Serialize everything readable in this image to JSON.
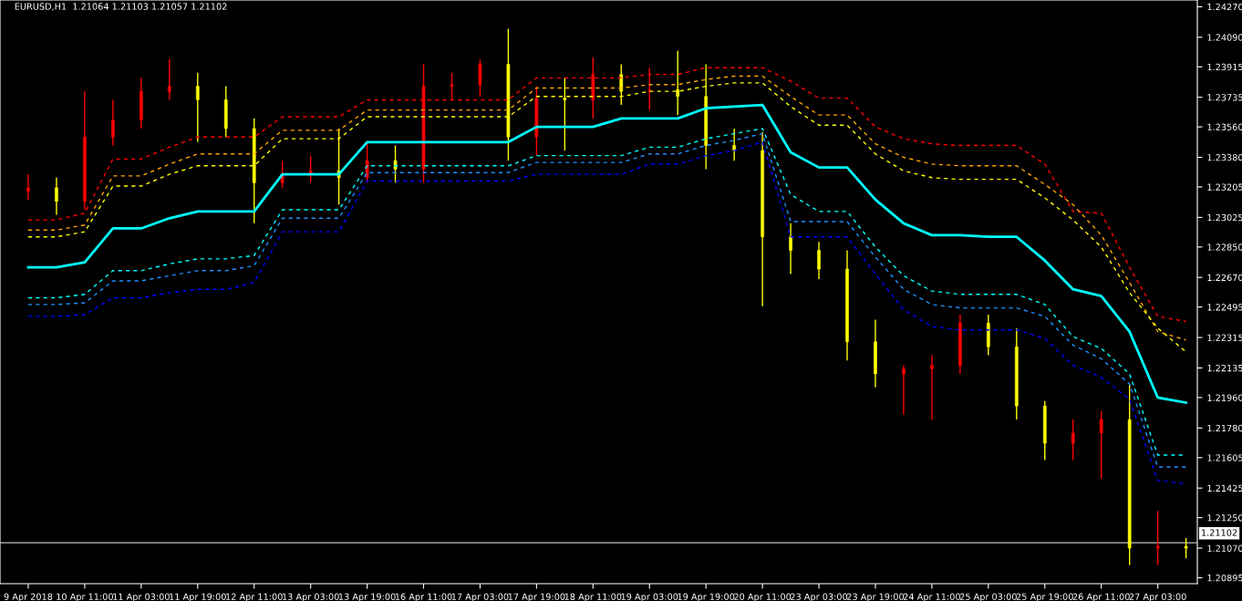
{
  "chart_data": {
    "type": "candlestick",
    "title": "EURUSD,H1  1.21064 1.21103 1.21057 1.21102",
    "categories": [
      "9 Apr 2018",
      null,
      "10 Apr 11:00",
      null,
      "11 Apr 03:00",
      null,
      "11 Apr 19:00",
      null,
      "12 Apr 11:00",
      null,
      "13 Apr 03:00",
      null,
      "13 Apr 19:00",
      null,
      "16 Apr 11:00",
      null,
      "17 Apr 03:00",
      null,
      "17 Apr 19:00",
      null,
      "18 Apr 11:00",
      null,
      "19 Apr 03:00",
      null,
      "19 Apr 19:00",
      null,
      "20 Apr 11:00",
      null,
      "23 Apr 03:00",
      null,
      "23 Apr 19:00",
      null,
      "24 Apr 11:00",
      null,
      "25 Apr 03:00",
      null,
      "25 Apr 19:00",
      null,
      "26 Apr 11:00",
      null,
      "27 Apr 03:00",
      null
    ],
    "ohlc": [
      [
        1.2318,
        1.2328,
        1.2313,
        1.232
      ],
      [
        1.232,
        1.2326,
        1.2304,
        1.2312
      ],
      [
        1.2312,
        1.2377,
        1.2307,
        1.235
      ],
      [
        1.235,
        1.2372,
        1.2345,
        1.236
      ],
      [
        1.236,
        1.2385,
        1.2355,
        1.2377
      ],
      [
        1.2377,
        1.2396,
        1.2372,
        1.238
      ],
      [
        1.238,
        1.2388,
        1.2347,
        1.2372
      ],
      [
        1.2372,
        1.238,
        1.235,
        1.2355
      ],
      [
        1.2355,
        1.2361,
        1.2299,
        1.2323
      ],
      [
        1.2323,
        1.2336,
        1.232,
        1.2328
      ],
      [
        1.2328,
        1.2339,
        1.2323,
        1.233
      ],
      [
        1.233,
        1.2355,
        1.231,
        1.2326
      ],
      [
        1.2326,
        1.2347,
        1.2323,
        1.2336
      ],
      [
        1.2336,
        1.2345,
        1.2323,
        1.2331
      ],
      [
        1.2331,
        1.2393,
        1.2323,
        1.238
      ],
      [
        1.238,
        1.2388,
        1.2372,
        1.2381
      ],
      [
        1.2381,
        1.2396,
        1.2374,
        1.2393
      ],
      [
        1.2393,
        1.2414,
        1.2336,
        1.235
      ],
      [
        1.235,
        1.238,
        1.2339,
        1.2373
      ],
      [
        1.2373,
        1.2385,
        1.2342,
        1.2372
      ],
      [
        1.2372,
        1.2397,
        1.2361,
        1.2387
      ],
      [
        1.2387,
        1.2393,
        1.2369,
        1.2377
      ],
      [
        1.2377,
        1.2391,
        1.2366,
        1.2378
      ],
      [
        1.2378,
        1.2401,
        1.2363,
        1.2374
      ],
      [
        1.2374,
        1.2393,
        1.2331,
        1.2345
      ],
      [
        1.2345,
        1.2355,
        1.2336,
        1.2342
      ],
      [
        1.2342,
        1.2353,
        1.225,
        1.2291
      ],
      [
        1.2291,
        1.2299,
        1.2269,
        1.2283
      ],
      [
        1.2283,
        1.2288,
        1.2266,
        1.2272
      ],
      [
        1.2272,
        1.2283,
        1.2218,
        1.2229
      ],
      [
        1.2229,
        1.2242,
        1.2202,
        1.221
      ],
      [
        1.221,
        1.2215,
        1.2186,
        1.2213
      ],
      [
        1.2213,
        1.2221,
        1.2183,
        1.2215
      ],
      [
        1.2215,
        1.2245,
        1.221,
        1.224
      ],
      [
        1.224,
        1.2245,
        1.2221,
        1.2226
      ],
      [
        1.2226,
        1.2237,
        1.2183,
        1.2191
      ],
      [
        1.2191,
        1.2194,
        1.2159,
        1.2169
      ],
      [
        1.2169,
        1.2183,
        1.2159,
        1.2175
      ],
      [
        1.2175,
        1.2188,
        1.2148,
        1.2183
      ],
      [
        1.2183,
        1.2204,
        1.2097,
        1.2107
      ],
      [
        1.2107,
        1.2129,
        1.2097,
        1.2108
      ],
      [
        1.2108,
        1.2113,
        1.2101,
        1.2107
      ]
    ],
    "colors": [
      "#ff0000",
      "#ffff00",
      "#ff0000",
      "#ff0000",
      "#ff0000",
      "#ff0000",
      "#ffff00",
      "#ffff00",
      "#ffff00",
      "#ff0000",
      "#ff0000",
      "#ffff00",
      "#ff0000",
      "#ffff00",
      "#ff0000",
      "#ff0000",
      "#ff0000",
      "#ffff00",
      "#ff0000",
      "#ffff00",
      "#ff0000",
      "#ffff00",
      "#ff0000",
      "#ffff00",
      "#ffff00",
      "#ffff00",
      "#ffff00",
      "#ffff00",
      "#ffff00",
      "#ffff00",
      "#ffff00",
      "#ff0000",
      "#ff0000",
      "#ff0000",
      "#ffff00",
      "#ffff00",
      "#ffff00",
      "#ff0000",
      "#ff0000",
      "#ffff00",
      "#ff0000",
      "#ffff00"
    ],
    "series": [
      {
        "type": "line",
        "color": "#00ffff",
        "line_style": "solid",
        "values": [
          1.2273,
          1.2273,
          1.2276,
          1.2296,
          1.2296,
          1.2302,
          1.2306,
          1.2306,
          1.2306,
          1.2328,
          1.2328,
          1.2328,
          1.2347,
          1.2347,
          1.2347,
          1.2347,
          1.2347,
          1.2347,
          1.2356,
          1.2356,
          1.2356,
          1.2361,
          1.2361,
          1.2361,
          1.2367,
          1.2368,
          1.2369,
          1.2341,
          1.2332,
          1.2332,
          1.2313,
          1.2299,
          1.2292,
          1.2292,
          1.2291,
          1.2291,
          1.2277,
          1.226,
          1.2256,
          1.2235,
          1.2196,
          1.2193
        ]
      },
      {
        "type": "line",
        "color": "#ff0000",
        "line_style": "dashed",
        "values": [
          1.2301,
          1.2301,
          1.2305,
          1.2337,
          1.2337,
          1.2344,
          1.235,
          1.235,
          1.235,
          1.2362,
          1.2362,
          1.2362,
          1.2372,
          1.2372,
          1.2372,
          1.2372,
          1.2372,
          1.2372,
          1.2385,
          1.2385,
          1.2385,
          1.2385,
          1.2387,
          1.2387,
          1.2391,
          1.2391,
          1.2391,
          1.2383,
          1.2373,
          1.2373,
          1.2356,
          1.2349,
          1.2346,
          1.2345,
          1.2345,
          1.2345,
          1.2334,
          1.2306,
          1.2305,
          1.2273,
          1.2244,
          1.2241
        ]
      },
      {
        "type": "line",
        "color": "#ffa500",
        "line_style": "dashed",
        "values": [
          1.2295,
          1.2295,
          1.2298,
          1.2327,
          1.2327,
          1.2334,
          1.234,
          1.234,
          1.234,
          1.2354,
          1.2354,
          1.2354,
          1.2366,
          1.2366,
          1.2366,
          1.2366,
          1.2366,
          1.2366,
          1.2379,
          1.2379,
          1.2379,
          1.2379,
          1.2381,
          1.2381,
          1.2384,
          1.2386,
          1.2386,
          1.2374,
          1.2363,
          1.2363,
          1.2346,
          1.2338,
          1.2334,
          1.2333,
          1.2333,
          1.2333,
          1.2322,
          1.231,
          1.2292,
          1.2264,
          1.2235,
          1.223
        ]
      },
      {
        "type": "line",
        "color": "#ffff00",
        "line_style": "dashed",
        "values": [
          1.2291,
          1.2291,
          1.2294,
          1.2321,
          1.2321,
          1.2328,
          1.2333,
          1.2333,
          1.2333,
          1.2349,
          1.2349,
          1.2349,
          1.2362,
          1.2362,
          1.2362,
          1.2362,
          1.2362,
          1.2362,
          1.2374,
          1.2374,
          1.2374,
          1.2374,
          1.2377,
          1.2377,
          1.238,
          1.2382,
          1.2382,
          1.2368,
          1.2357,
          1.2357,
          1.234,
          1.233,
          1.2326,
          1.2325,
          1.2325,
          1.2325,
          1.2314,
          1.2301,
          1.2285,
          1.2258,
          1.2237,
          1.2223
        ]
      },
      {
        "type": "line",
        "color": "#00ffff",
        "line_style": "dashed",
        "values": [
          1.2255,
          1.2255,
          1.2257,
          1.2271,
          1.2271,
          1.2275,
          1.2278,
          1.2278,
          1.228,
          1.2307,
          1.2307,
          1.2307,
          1.2333,
          1.2333,
          1.2333,
          1.2333,
          1.2333,
          1.2333,
          1.2339,
          1.2339,
          1.2339,
          1.2339,
          1.2344,
          1.2344,
          1.2349,
          1.2352,
          1.2355,
          1.2316,
          1.2306,
          1.2306,
          1.2285,
          1.2268,
          1.2259,
          1.2257,
          1.2257,
          1.2257,
          1.2251,
          1.2232,
          1.2225,
          1.221,
          1.2162,
          1.2162
        ]
      },
      {
        "type": "line",
        "color": "#1e90ff",
        "line_style": "dashed",
        "values": [
          1.2251,
          1.2251,
          1.2252,
          1.2265,
          1.2265,
          1.2268,
          1.2271,
          1.2271,
          1.2274,
          1.2302,
          1.2302,
          1.2302,
          1.2329,
          1.2329,
          1.2329,
          1.2329,
          1.2329,
          1.2329,
          1.2335,
          1.2335,
          1.2335,
          1.2335,
          1.234,
          1.234,
          1.2345,
          1.2348,
          1.2352,
          1.23,
          1.23,
          1.23,
          1.2279,
          1.226,
          1.2251,
          1.2249,
          1.2249,
          1.2249,
          1.2244,
          1.2227,
          1.2219,
          1.2204,
          1.2155,
          1.2155
        ]
      },
      {
        "type": "line",
        "color": "#0000ff",
        "line_style": "dashed",
        "values": [
          1.2244,
          1.2244,
          1.2245,
          1.2255,
          1.2255,
          1.2258,
          1.226,
          1.226,
          1.2264,
          1.2294,
          1.2294,
          1.2294,
          1.2324,
          1.2324,
          1.2324,
          1.2324,
          1.2324,
          1.2324,
          1.2328,
          1.2328,
          1.2328,
          1.2328,
          1.2334,
          1.2334,
          1.2339,
          1.2342,
          1.2347,
          1.2291,
          1.2291,
          1.2291,
          1.2269,
          1.2248,
          1.2238,
          1.2236,
          1.2236,
          1.2236,
          1.2231,
          1.2215,
          1.2208,
          1.2195,
          1.2147,
          1.2145
        ]
      }
    ],
    "ref_lines": [
      {
        "axis": "y",
        "value": 1.21102,
        "label": "1.21102",
        "color": "#c0c0c0"
      }
    ],
    "ylim": [
      1.2086,
      1.2431
    ],
    "yticks": [
      {
        "value": 1.2427,
        "label": "1.24270"
      },
      {
        "value": 1.2409,
        "label": "1.24090"
      },
      {
        "value": 1.23915,
        "label": "1.23915"
      },
      {
        "value": 1.23735,
        "label": "1.23735"
      },
      {
        "value": 1.2356,
        "label": "1.23560"
      },
      {
        "value": 1.2338,
        "label": "1.23380"
      },
      {
        "value": 1.23205,
        "label": "1.23205"
      },
      {
        "value": 1.23025,
        "label": "1.23025"
      },
      {
        "value": 1.2285,
        "label": "1.22850"
      },
      {
        "value": 1.2267,
        "label": "1.22670"
      },
      {
        "value": 1.22495,
        "label": "1.22495"
      },
      {
        "value": 1.22315,
        "label": "1.22315"
      },
      {
        "value": 1.22135,
        "label": "1.22135"
      },
      {
        "value": 1.2196,
        "label": "1.21960"
      },
      {
        "value": 1.2178,
        "label": "1.21780"
      },
      {
        "value": 1.21605,
        "label": "1.21605"
      },
      {
        "value": 1.21425,
        "label": "1.21425"
      },
      {
        "value": 1.2125,
        "label": "1.21250"
      },
      {
        "value": 1.2107,
        "label": "1.21070"
      },
      {
        "value": 1.20895,
        "label": "1.20895"
      }
    ],
    "grid": false,
    "legend": false
  }
}
